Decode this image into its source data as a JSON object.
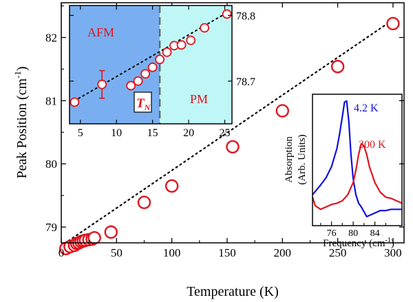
{
  "chart_data": [
    {
      "type": "scatter",
      "xlabel": "Temperature (K)",
      "ylabel": "Peak Position (cm",
      "ylabel_sup": "-1",
      "ylabel_suffix": ")",
      "xlim": [
        0,
        310
      ],
      "ylim": [
        78.75,
        82.55
      ],
      "xticks": [
        0,
        50,
        100,
        150,
        200,
        250,
        300
      ],
      "yticks": [
        79,
        80,
        81,
        82
      ],
      "marker_color": "#e0141e",
      "fit_line": [
        [
          3,
          78.74
        ],
        [
          300,
          82.28
        ]
      ],
      "series": [
        {
          "x": [
            4.2,
            8,
            12,
            14,
            16,
            18,
            20,
            22,
            25,
            28,
            30,
            45,
            75,
            100,
            155,
            200,
            250,
            300
          ],
          "y": [
            78.66,
            78.69,
            78.71,
            78.74,
            78.75,
            78.77,
            78.78,
            78.79,
            78.8,
            78.81,
            78.83,
            78.92,
            79.39,
            79.65,
            80.27,
            80.84,
            81.54,
            82.22
          ]
        }
      ]
    },
    {
      "type": "scatter",
      "xlim": [
        3.5,
        26
      ],
      "ylim": [
        78.635,
        78.815
      ],
      "xticks": [
        5,
        10,
        15,
        20,
        25
      ],
      "yticks": [
        78.7,
        78.8
      ],
      "ytick_labels": [
        "78.7",
        "78.8"
      ],
      "transition_x": 16,
      "regions": [
        {
          "label": "AFM",
          "color": "#79aff0"
        },
        {
          "label": "PM",
          "color": "#bff7f7"
        }
      ],
      "transition_label_main": "T",
      "transition_label_sub": "N",
      "fit_line": [
        [
          4.2,
          78.67
        ],
        [
          25.3,
          78.804
        ]
      ],
      "series": [
        {
          "x": [
            4.2,
            8,
            12,
            13,
            14,
            15,
            16,
            17,
            18,
            19,
            20.3,
            22.2,
            25.3
          ],
          "y": [
            78.668,
            78.695,
            78.693,
            78.7,
            78.711,
            78.721,
            78.733,
            78.744,
            78.754,
            78.755,
            78.762,
            78.781,
            78.802
          ],
          "error_bars": [
            {
              "x": 8,
              "low": 78.674,
              "high": 78.716
            }
          ]
        }
      ]
    },
    {
      "type": "line",
      "xlabel": "Frequency (cm",
      "xlabel_sup": "-1",
      "xlabel_suffix": ")",
      "ylabel": "Absorption",
      "ylabel2": "(Arb. Units)",
      "xlim": [
        72.5,
        89
      ],
      "xticks": [
        76,
        80,
        84
      ],
      "series": [
        {
          "name": "4.2 K",
          "color": "#1010e0",
          "x": [
            72.5,
            74,
            75,
            76,
            77,
            77.5,
            78,
            78.4,
            78.8,
            79.2,
            79.6,
            80,
            80.5,
            81,
            81.5,
            82,
            82.5,
            83,
            84,
            85,
            86,
            87,
            88,
            89
          ],
          "y": [
            0.22,
            0.3,
            0.36,
            0.45,
            0.6,
            0.72,
            0.86,
            0.98,
            0.99,
            0.82,
            0.55,
            0.35,
            0.22,
            0.15,
            0.12,
            0.08,
            0.04,
            0.05,
            0.07,
            0.09,
            0.09,
            0.1,
            0.1,
            0.1
          ]
        },
        {
          "name": "300 K",
          "color": "#e0141e",
          "x": [
            72.5,
            73,
            74,
            75,
            76,
            77,
            78,
            79,
            80,
            80.5,
            81,
            81.5,
            82,
            82.5,
            83,
            84,
            85,
            86,
            87,
            88,
            89
          ],
          "y": [
            0.2,
            0.13,
            0.1,
            0.12,
            0.14,
            0.15,
            0.17,
            0.22,
            0.32,
            0.42,
            0.55,
            0.64,
            0.62,
            0.55,
            0.45,
            0.32,
            0.24,
            0.2,
            0.19,
            0.17,
            0.15
          ]
        }
      ]
    }
  ]
}
